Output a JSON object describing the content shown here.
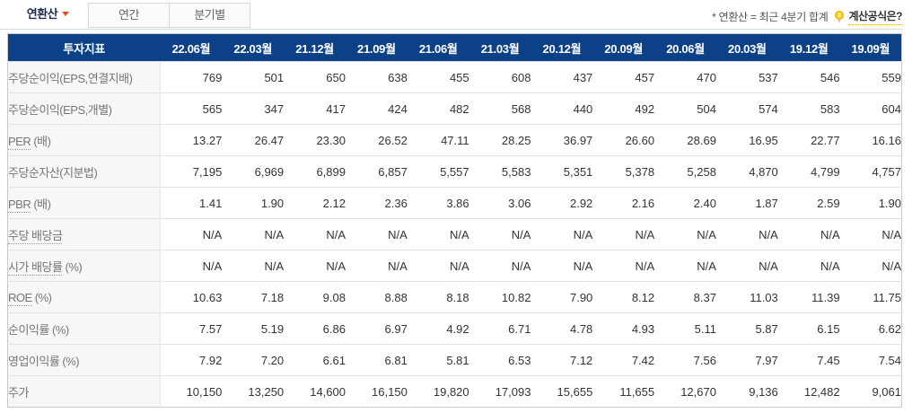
{
  "tabs": [
    {
      "name": "annualized",
      "label": "연환산",
      "active": true
    },
    {
      "name": "yearly",
      "label": "연간",
      "active": false
    },
    {
      "name": "quarterly",
      "label": "분기별",
      "active": false
    }
  ],
  "note": {
    "text": "* 연환산 = 최근 4분기 합계",
    "link_label": "계산공식은?",
    "bulb_icon": "lightbulb-icon"
  },
  "colors": {
    "header_bg": "#0c4087",
    "header_text": "#ffffff",
    "tab_active_text": "#1f2b4e",
    "tab_triangle": "#e8491f",
    "bulb_yellow": "#ffcc00",
    "label_bg": "#f7f7f7",
    "label_text": "#767676",
    "value_text": "#333333"
  },
  "table": {
    "header": [
      "투자지표",
      "22.06월",
      "22.03월",
      "21.12월",
      "21.09월",
      "21.06월",
      "21.03월",
      "20.12월",
      "20.09월",
      "20.06월",
      "20.03월",
      "19.12월",
      "19.09월"
    ],
    "rows": [
      {
        "name": "eps-consolidated",
        "label": "주당순이익(EPS,연결지배)",
        "term": "",
        "suffix": "",
        "values": [
          "769",
          "501",
          "650",
          "638",
          "455",
          "608",
          "437",
          "457",
          "470",
          "537",
          "546",
          "559"
        ]
      },
      {
        "name": "eps-individual",
        "label": "주당순이익(EPS,개별)",
        "term": "",
        "suffix": "",
        "values": [
          "565",
          "347",
          "417",
          "424",
          "482",
          "568",
          "440",
          "492",
          "504",
          "574",
          "583",
          "604"
        ]
      },
      {
        "name": "per",
        "label": "PER (배)",
        "term": "PER",
        "suffix": " (배)",
        "values": [
          "13.27",
          "26.47",
          "23.30",
          "26.52",
          "47.11",
          "28.25",
          "36.97",
          "26.60",
          "28.69",
          "16.95",
          "22.77",
          "16.16"
        ]
      },
      {
        "name": "bps",
        "label": "주당순자산(지분법)",
        "term": "",
        "suffix": "",
        "values": [
          "7,195",
          "6,969",
          "6,899",
          "6,857",
          "5,557",
          "5,583",
          "5,351",
          "5,378",
          "5,258",
          "4,870",
          "4,799",
          "4,757"
        ]
      },
      {
        "name": "pbr",
        "label": "PBR (배)",
        "term": "PBR",
        "suffix": " (배)",
        "values": [
          "1.41",
          "1.90",
          "2.12",
          "2.36",
          "3.86",
          "3.06",
          "2.92",
          "2.16",
          "2.40",
          "1.87",
          "2.59",
          "1.90"
        ]
      },
      {
        "name": "dividend-per-share",
        "label": "주당 배당금",
        "term": "주당 배당금",
        "suffix": "",
        "values": [
          "N/A",
          "N/A",
          "N/A",
          "N/A",
          "N/A",
          "N/A",
          "N/A",
          "N/A",
          "N/A",
          "N/A",
          "N/A",
          "N/A"
        ]
      },
      {
        "name": "dividend-yield",
        "label": "시가 배당률 (%)",
        "term": "시가 배당률",
        "suffix": " (%)",
        "values": [
          "N/A",
          "N/A",
          "N/A",
          "N/A",
          "N/A",
          "N/A",
          "N/A",
          "N/A",
          "N/A",
          "N/A",
          "N/A",
          "N/A"
        ]
      },
      {
        "name": "roe",
        "label": "ROE (%)",
        "term": "ROE",
        "suffix": " (%)",
        "values": [
          "10.63",
          "7.18",
          "9.08",
          "8.88",
          "8.18",
          "10.82",
          "7.90",
          "8.12",
          "8.37",
          "11.03",
          "11.39",
          "11.75"
        ]
      },
      {
        "name": "net-margin",
        "label": "순이익률 (%)",
        "term": "",
        "suffix": "",
        "values": [
          "7.57",
          "5.19",
          "6.86",
          "6.97",
          "4.92",
          "6.71",
          "4.78",
          "4.93",
          "5.11",
          "5.87",
          "6.15",
          "6.62"
        ]
      },
      {
        "name": "operating-margin",
        "label": "영업이익률 (%)",
        "term": "",
        "suffix": "",
        "values": [
          "7.92",
          "7.20",
          "6.61",
          "6.81",
          "5.81",
          "6.53",
          "7.12",
          "7.42",
          "7.56",
          "7.97",
          "7.45",
          "7.54"
        ]
      },
      {
        "name": "stock-price",
        "label": "주가",
        "term": "",
        "suffix": "",
        "values": [
          "10,150",
          "13,250",
          "14,600",
          "16,150",
          "19,820",
          "17,093",
          "15,655",
          "11,655",
          "12,670",
          "9,136",
          "12,482",
          "9,061"
        ]
      }
    ]
  }
}
